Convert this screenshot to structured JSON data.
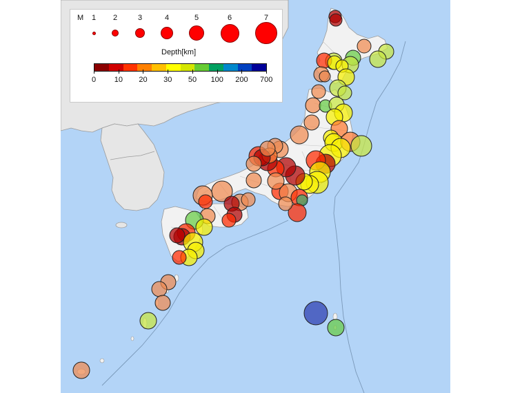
{
  "map": {
    "colors": {
      "sea": "#b3d4f7",
      "land_japan": "#f2f2f2",
      "land_asia": "#e6e6e6",
      "border": "#9a9a9a",
      "trench": "#7a98b8"
    },
    "epicenter_icon": "filled-circle-marker"
  },
  "legend": {
    "magnitude_label": "M",
    "magnitudes": [
      "1",
      "2",
      "3",
      "4",
      "5",
      "6",
      "7"
    ],
    "depth_title": "Depth[km]",
    "depth_ticks": [
      "0",
      "10",
      "20",
      "30",
      "50",
      "100",
      "200",
      "700"
    ],
    "depth_colors": [
      "#8b0000",
      "#d00000",
      "#ff3300",
      "#ff8000",
      "#ffc000",
      "#ffff00",
      "#d4e600",
      "#66cc33",
      "#00a060",
      "#0088cc",
      "#0040c0",
      "#000099"
    ]
  }
}
